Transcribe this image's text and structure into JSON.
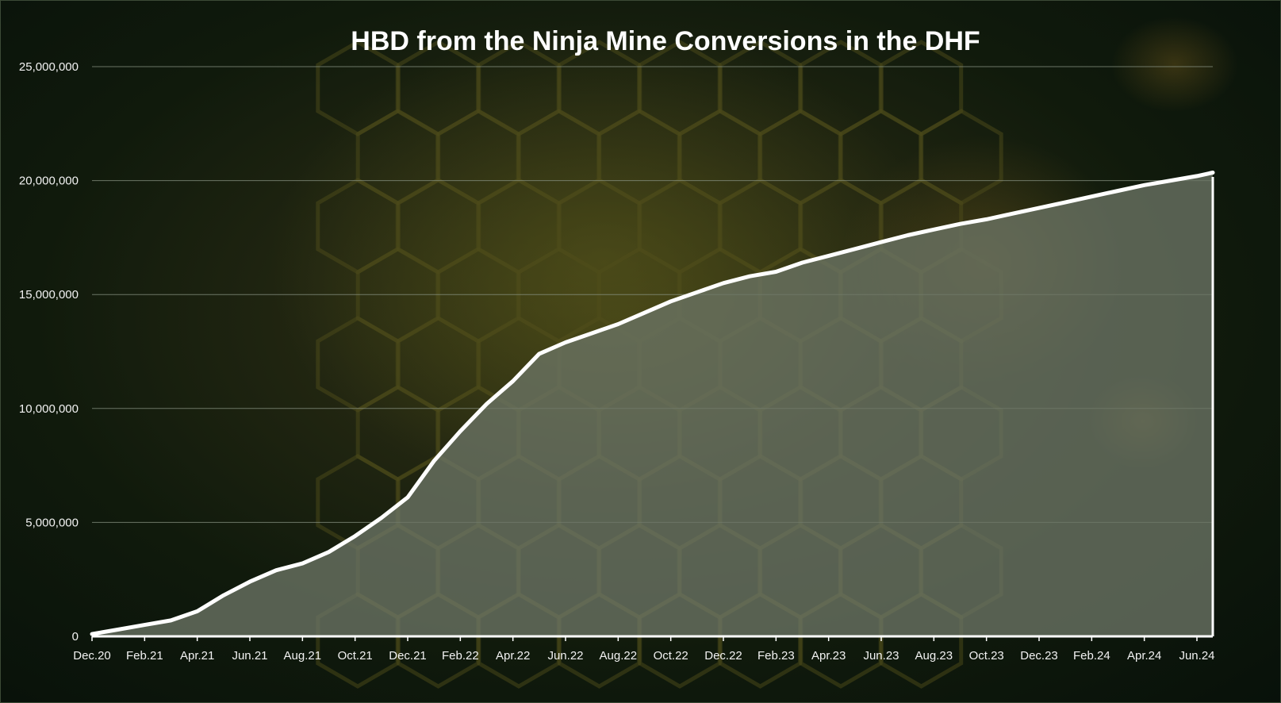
{
  "chart_data": {
    "type": "area",
    "title": "HBD from the Ninja Mine Conversions in the DHF",
    "xlabel": "",
    "ylabel": "",
    "ylim": [
      0,
      25000000
    ],
    "grid": true,
    "legend": "none",
    "colors": {
      "line": "#ffffff",
      "fill": "#6b7565",
      "grid": "#8a9484",
      "text": "#f2f2f2"
    },
    "y_ticks": [
      0,
      5000000,
      10000000,
      15000000,
      20000000,
      25000000
    ],
    "y_tick_labels": [
      "0",
      "5,000,000",
      "10,000,000",
      "15,000,000",
      "20,000,000",
      "25,000,000"
    ],
    "x_tick_labels": [
      "Dec.20",
      "Feb.21",
      "Apr.21",
      "Jun.21",
      "Aug.21",
      "Oct.21",
      "Dec.21",
      "Feb.22",
      "Apr.22",
      "Jun.22",
      "Aug.22",
      "Oct.22",
      "Dec.22",
      "Feb.23",
      "Apr.23",
      "Jun.23",
      "Aug.23",
      "Oct.23",
      "Dec.23",
      "Feb.24",
      "Apr.24",
      "Jun.24"
    ],
    "x_start": "Dec.20",
    "x_end": "Jun.24",
    "series": [
      {
        "x": [
          "Dec.20",
          "Jan.21",
          "Feb.21",
          "Mar.21",
          "Apr.21",
          "May.21",
          "Jun.21",
          "Jul.21",
          "Aug.21",
          "Sep.21",
          "Oct.21",
          "Nov.21",
          "Dec.21",
          "Jan.22",
          "Feb.22",
          "Mar.22",
          "Apr.22",
          "May.22",
          "Jun.22",
          "Jul.22",
          "Aug.22",
          "Sep.22",
          "Oct.22",
          "Nov.22",
          "Dec.22",
          "Jan.23",
          "Feb.23",
          "Mar.23",
          "Apr.23",
          "May.23",
          "Jun.23",
          "Jul.23",
          "Aug.23",
          "Sep.23",
          "Oct.23",
          "Nov.23",
          "Dec.23",
          "Jan.24",
          "Feb.24",
          "Mar.24",
          "Apr.24",
          "May.24",
          "Jun.24",
          "Jul.24"
        ],
        "values": [
          100000,
          300000,
          500000,
          700000,
          1100000,
          1800000,
          2400000,
          2900000,
          3200000,
          3700000,
          4400000,
          5200000,
          6100000,
          7700000,
          9000000,
          10200000,
          11200000,
          12400000,
          12900000,
          13300000,
          13700000,
          14200000,
          14700000,
          15100000,
          15500000,
          15800000,
          16000000,
          16400000,
          16700000,
          17000000,
          17300000,
          17600000,
          17850000,
          18100000,
          18300000,
          18550000,
          18800000,
          19050000,
          19300000,
          19550000,
          19800000,
          20000000,
          20200000,
          20350000
        ]
      }
    ]
  }
}
